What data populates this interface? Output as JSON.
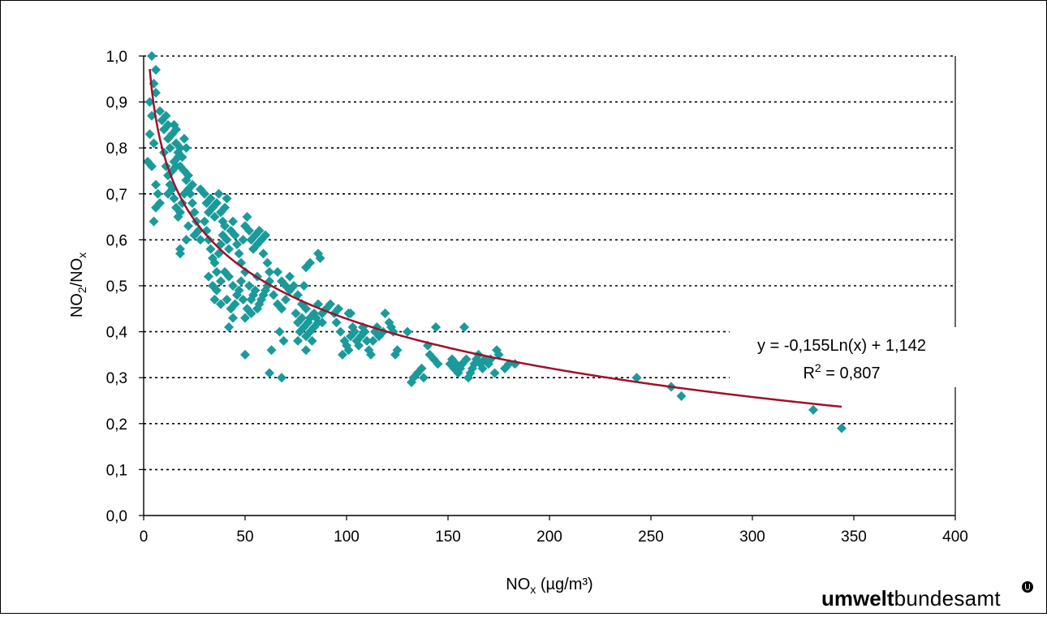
{
  "chart_data": {
    "type": "scatter",
    "xlabel": "NO",
    "xlabel_sub": "x",
    "xlabel_unit": " (µg/m³)",
    "ylabel": "NO",
    "ylabel_sub1": "2",
    "ylabel_mid": "/NO",
    "ylabel_sub2": "x",
    "xlim": [
      0,
      400
    ],
    "ylim": [
      0,
      1.0
    ],
    "xticks": [
      "0",
      "50",
      "100",
      "150",
      "200",
      "250",
      "300",
      "350",
      "400"
    ],
    "yticks": [
      "0,0",
      "0,1",
      "0,2",
      "0,3",
      "0,4",
      "0,5",
      "0,6",
      "0,7",
      "0,8",
      "0,9",
      "1,0"
    ],
    "grid": "horizontal dotted",
    "point_color": "#1a9a9a",
    "trend_color": "#a0102a",
    "trendline": {
      "type": "logarithmic",
      "a": -0.155,
      "b": 1.142,
      "x_range": [
        3,
        344
      ],
      "equation_label": "y = -0,155Ln(x) + 1,142",
      "r2_label_prefix": "R",
      "r2_label_sup": "2",
      "r2_label_rest": " = 0,807"
    },
    "points": [
      [
        4,
        1.0
      ],
      [
        6,
        0.97
      ],
      [
        5,
        0.94
      ],
      [
        6,
        0.92
      ],
      [
        3,
        0.9
      ],
      [
        4,
        0.87
      ],
      [
        3,
        0.83
      ],
      [
        5,
        0.81
      ],
      [
        2,
        0.77
      ],
      [
        4,
        0.76
      ],
      [
        5,
        0.64
      ],
      [
        6,
        0.72
      ],
      [
        7,
        0.7
      ],
      [
        8,
        0.68
      ],
      [
        6,
        0.67
      ],
      [
        8,
        0.88
      ],
      [
        9,
        0.86
      ],
      [
        10,
        0.84
      ],
      [
        11,
        0.87
      ],
      [
        12,
        0.85
      ],
      [
        12,
        0.82
      ],
      [
        13,
        0.8
      ],
      [
        14,
        0.83
      ],
      [
        15,
        0.85
      ],
      [
        16,
        0.84
      ],
      [
        16,
        0.81
      ],
      [
        17,
        0.79
      ],
      [
        18,
        0.8
      ],
      [
        10,
        0.79
      ],
      [
        11,
        0.76
      ],
      [
        12,
        0.74
      ],
      [
        13,
        0.72
      ],
      [
        14,
        0.75
      ],
      [
        15,
        0.77
      ],
      [
        16,
        0.76
      ],
      [
        17,
        0.78
      ],
      [
        18,
        0.76
      ],
      [
        19,
        0.78
      ],
      [
        20,
        0.82
      ],
      [
        21,
        0.8
      ],
      [
        20,
        0.75
      ],
      [
        21,
        0.73
      ],
      [
        22,
        0.74
      ],
      [
        22,
        0.71
      ],
      [
        23,
        0.7
      ],
      [
        24,
        0.72
      ],
      [
        20,
        0.7
      ],
      [
        19,
        0.68
      ],
      [
        18,
        0.66
      ],
      [
        17,
        0.65
      ],
      [
        16,
        0.67
      ],
      [
        15,
        0.69
      ],
      [
        14,
        0.71
      ],
      [
        12,
        0.7
      ],
      [
        24,
        0.68
      ],
      [
        25,
        0.66
      ],
      [
        26,
        0.64
      ],
      [
        27,
        0.62
      ],
      [
        22,
        0.63
      ],
      [
        21,
        0.6
      ],
      [
        18,
        0.58
      ],
      [
        18,
        0.57
      ],
      [
        25,
        0.61
      ],
      [
        28,
        0.6
      ],
      [
        28,
        0.71
      ],
      [
        30,
        0.7
      ],
      [
        31,
        0.68
      ],
      [
        32,
        0.66
      ],
      [
        33,
        0.69
      ],
      [
        34,
        0.67
      ],
      [
        35,
        0.65
      ],
      [
        36,
        0.68
      ],
      [
        37,
        0.7
      ],
      [
        38,
        0.66
      ],
      [
        39,
        0.64
      ],
      [
        40,
        0.67
      ],
      [
        41,
        0.69
      ],
      [
        30,
        0.64
      ],
      [
        31,
        0.62
      ],
      [
        32,
        0.6
      ],
      [
        33,
        0.58
      ],
      [
        34,
        0.56
      ],
      [
        35,
        0.55
      ],
      [
        36,
        0.53
      ],
      [
        37,
        0.57
      ],
      [
        38,
        0.59
      ],
      [
        39,
        0.61
      ],
      [
        40,
        0.63
      ],
      [
        41,
        0.6
      ],
      [
        42,
        0.58
      ],
      [
        43,
        0.62
      ],
      [
        44,
        0.64
      ],
      [
        45,
        0.61
      ],
      [
        46,
        0.59
      ],
      [
        47,
        0.57
      ],
      [
        48,
        0.55
      ],
      [
        49,
        0.6
      ],
      [
        50,
        0.63
      ],
      [
        51,
        0.65
      ],
      [
        52,
        0.62
      ],
      [
        53,
        0.6
      ],
      [
        54,
        0.58
      ],
      [
        55,
        0.61
      ],
      [
        56,
        0.59
      ],
      [
        57,
        0.62
      ],
      [
        58,
        0.6
      ],
      [
        59,
        0.57
      ],
      [
        60,
        0.61
      ],
      [
        61,
        0.55
      ],
      [
        62,
        0.53
      ],
      [
        32,
        0.52
      ],
      [
        34,
        0.5
      ],
      [
        36,
        0.49
      ],
      [
        38,
        0.51
      ],
      [
        40,
        0.53
      ],
      [
        42,
        0.52
      ],
      [
        44,
        0.5
      ],
      [
        46,
        0.48
      ],
      [
        48,
        0.51
      ],
      [
        50,
        0.53
      ],
      [
        52,
        0.5
      ],
      [
        54,
        0.48
      ],
      [
        56,
        0.52
      ],
      [
        35,
        0.47
      ],
      [
        38,
        0.46
      ],
      [
        41,
        0.47
      ],
      [
        43,
        0.45
      ],
      [
        45,
        0.46
      ],
      [
        47,
        0.49
      ],
      [
        49,
        0.47
      ],
      [
        51,
        0.45
      ],
      [
        53,
        0.47
      ],
      [
        55,
        0.49
      ],
      [
        57,
        0.46
      ],
      [
        59,
        0.48
      ],
      [
        61,
        0.5
      ],
      [
        42,
        0.41
      ],
      [
        44,
        0.43
      ],
      [
        50,
        0.43
      ],
      [
        53,
        0.44
      ],
      [
        56,
        0.45
      ],
      [
        58,
        0.47
      ],
      [
        60,
        0.49
      ],
      [
        62,
        0.51
      ],
      [
        64,
        0.48
      ],
      [
        66,
        0.46
      ],
      [
        68,
        0.45
      ],
      [
        70,
        0.47
      ],
      [
        72,
        0.49
      ],
      [
        66,
        0.53
      ],
      [
        68,
        0.51
      ],
      [
        70,
        0.5
      ],
      [
        72,
        0.52
      ],
      [
        74,
        0.5
      ],
      [
        76,
        0.48
      ],
      [
        78,
        0.46
      ],
      [
        80,
        0.45
      ],
      [
        82,
        0.43
      ],
      [
        84,
        0.44
      ],
      [
        80,
        0.54
      ],
      [
        82,
        0.55
      ],
      [
        86,
        0.57
      ],
      [
        87,
        0.56
      ],
      [
        79,
        0.5
      ],
      [
        75,
        0.44
      ],
      [
        76,
        0.42
      ],
      [
        77,
        0.4
      ],
      [
        78,
        0.43
      ],
      [
        79,
        0.41
      ],
      [
        80,
        0.39
      ],
      [
        81,
        0.42
      ],
      [
        82,
        0.4
      ],
      [
        83,
        0.38
      ],
      [
        84,
        0.41
      ],
      [
        85,
        0.43
      ],
      [
        86,
        0.42
      ],
      [
        88,
        0.44
      ],
      [
        90,
        0.45
      ],
      [
        92,
        0.46
      ],
      [
        94,
        0.44
      ],
      [
        96,
        0.45
      ],
      [
        86,
        0.46
      ],
      [
        88,
        0.42
      ],
      [
        76,
        0.38
      ],
      [
        80,
        0.36
      ],
      [
        67,
        0.4
      ],
      [
        69,
        0.38
      ],
      [
        63,
        0.36
      ],
      [
        62,
        0.31
      ],
      [
        68,
        0.3
      ],
      [
        50,
        0.35
      ],
      [
        95,
        0.42
      ],
      [
        97,
        0.4
      ],
      [
        99,
        0.38
      ],
      [
        98,
        0.35
      ],
      [
        100,
        0.37
      ],
      [
        101,
        0.36
      ],
      [
        102,
        0.39
      ],
      [
        103,
        0.41
      ],
      [
        104,
        0.4
      ],
      [
        105,
        0.38
      ],
      [
        106,
        0.37
      ],
      [
        107,
        0.39
      ],
      [
        108,
        0.41
      ],
      [
        109,
        0.4
      ],
      [
        110,
        0.38
      ],
      [
        111,
        0.36
      ],
      [
        112,
        0.35
      ],
      [
        113,
        0.38
      ],
      [
        114,
        0.4
      ],
      [
        115,
        0.41
      ],
      [
        116,
        0.39
      ],
      [
        118,
        0.4
      ],
      [
        119,
        0.44
      ],
      [
        121,
        0.42
      ],
      [
        122,
        0.41
      ],
      [
        123,
        0.4
      ],
      [
        124,
        0.35
      ],
      [
        125,
        0.36
      ],
      [
        101,
        0.44
      ],
      [
        102,
        0.44
      ],
      [
        130,
        0.4
      ],
      [
        132,
        0.29
      ],
      [
        133,
        0.3
      ],
      [
        135,
        0.31
      ],
      [
        137,
        0.32
      ],
      [
        138,
        0.3
      ],
      [
        140,
        0.37
      ],
      [
        141,
        0.35
      ],
      [
        143,
        0.34
      ],
      [
        144,
        0.41
      ],
      [
        145,
        0.33
      ],
      [
        151,
        0.33
      ],
      [
        152,
        0.34
      ],
      [
        153,
        0.32
      ],
      [
        154,
        0.33
      ],
      [
        155,
        0.31
      ],
      [
        156,
        0.32
      ],
      [
        157,
        0.33
      ],
      [
        158,
        0.41
      ],
      [
        159,
        0.34
      ],
      [
        160,
        0.3
      ],
      [
        161,
        0.31
      ],
      [
        162,
        0.32
      ],
      [
        163,
        0.33
      ],
      [
        164,
        0.34
      ],
      [
        165,
        0.35
      ],
      [
        166,
        0.33
      ],
      [
        167,
        0.32
      ],
      [
        168,
        0.34
      ],
      [
        170,
        0.33
      ],
      [
        171,
        0.34
      ],
      [
        173,
        0.31
      ],
      [
        174,
        0.36
      ],
      [
        175,
        0.35
      ],
      [
        178,
        0.32
      ],
      [
        180,
        0.33
      ],
      [
        183,
        0.33
      ],
      [
        243,
        0.3
      ],
      [
        260,
        0.28
      ],
      [
        265,
        0.26
      ],
      [
        330,
        0.23
      ],
      [
        344,
        0.19
      ]
    ]
  }
}
